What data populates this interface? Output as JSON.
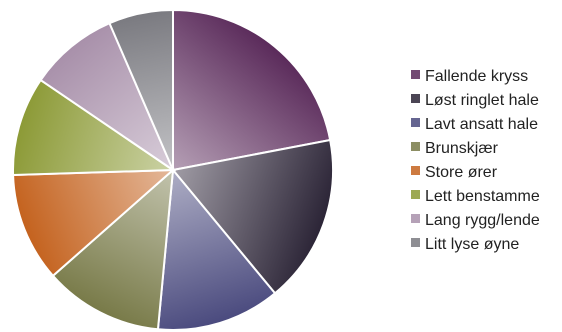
{
  "chart_data": {
    "type": "pie",
    "title": "",
    "legend_position": "right",
    "categories": [
      "Fallende kryss",
      "Løst ringlet hale",
      "Lavt ansatt hale",
      "Brunskjær",
      "Store ører",
      "Lett benstamme",
      "Lang rygg/lende",
      "Litt lyse øyne"
    ],
    "values": [
      22,
      17,
      12.5,
      12,
      11,
      10,
      9,
      6.5
    ],
    "colors": [
      "#5a2a5a",
      "#2b2436",
      "#4a4a7e",
      "#787a48",
      "#c4621e",
      "#8c9a36",
      "#a890aa",
      "#7a7a80"
    ]
  }
}
